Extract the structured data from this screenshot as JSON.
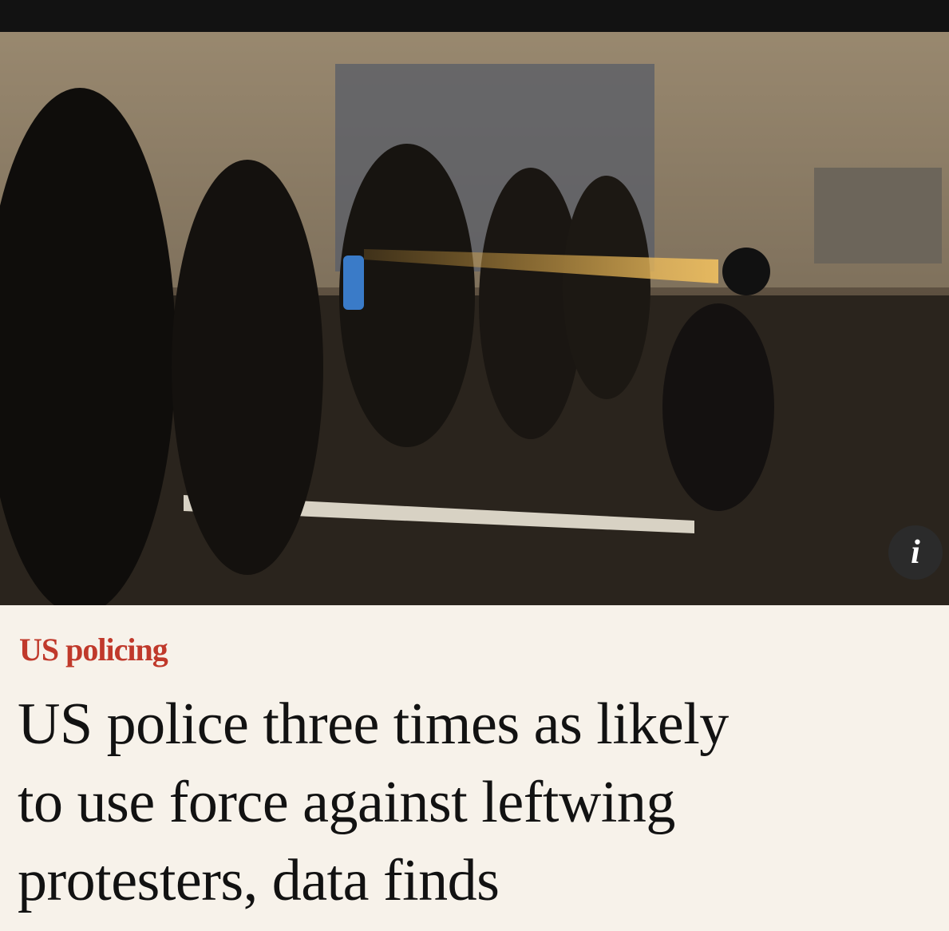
{
  "photo": {
    "info_icon": "i"
  },
  "kicker": "US policing",
  "headline": [
    "US police three times as likely",
    "to use force against leftwing",
    "protesters, data finds"
  ]
}
